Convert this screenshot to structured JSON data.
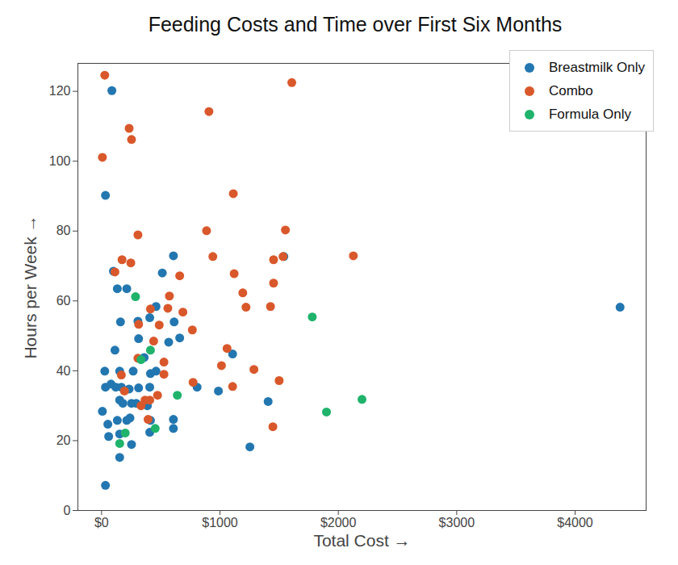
{
  "chart_data": {
    "type": "scatter",
    "title": "Feeding Costs and Time over First Six Months",
    "x_label": "Total Cost",
    "y_label": "Hours per Week",
    "xlim": [
      -200,
      4600
    ],
    "xticks": [
      {
        "value": 0,
        "label": "$0"
      },
      {
        "value": 1000,
        "label": "$1000"
      },
      {
        "value": 2000,
        "label": "$2000"
      },
      {
        "value": 3000,
        "label": "$3000"
      },
      {
        "value": 4000,
        "label": "$4000"
      }
    ],
    "ylim": [
      0,
      128
    ],
    "yticks": [
      0,
      20,
      40,
      60,
      80,
      100,
      120
    ],
    "grid": false,
    "legend": "upper right",
    "series": [
      {
        "name": "Breastmilk Only",
        "color": "#2377b0",
        "marker": "circle",
        "values": [
          [
            87,
            120.2
          ],
          [
            33,
            90.2
          ],
          [
            100,
            68.5
          ],
          [
            133,
            63.5
          ],
          [
            607,
            72.9
          ],
          [
            1540,
            72.7
          ],
          [
            513,
            68
          ],
          [
            213,
            63.5
          ],
          [
            160,
            54
          ],
          [
            307,
            54.2
          ],
          [
            407,
            55.2
          ],
          [
            460,
            58.4
          ],
          [
            613,
            54
          ],
          [
            313,
            49.2
          ],
          [
            567,
            48.2
          ],
          [
            660,
            49.4
          ],
          [
            113,
            45.9
          ],
          [
            1107,
            44.8
          ],
          [
            360,
            43.8
          ],
          [
            27,
            39.9
          ],
          [
            153,
            39.9
          ],
          [
            267,
            39.9
          ],
          [
            413,
            39.2
          ],
          [
            460,
            39.9
          ],
          [
            33,
            35.3
          ],
          [
            80,
            36.2
          ],
          [
            120,
            35.3
          ],
          [
            167,
            35.3
          ],
          [
            233,
            34.8
          ],
          [
            313,
            35.1
          ],
          [
            407,
            35.3
          ],
          [
            807,
            35.3
          ],
          [
            987,
            34.2
          ],
          [
            153,
            31.6
          ],
          [
            180,
            30.7
          ],
          [
            253,
            30.7
          ],
          [
            293,
            30.7
          ],
          [
            387,
            30
          ],
          [
            1407,
            31.2
          ],
          [
            7,
            28.4
          ],
          [
            240,
            26.5
          ],
          [
            133,
            25.8
          ],
          [
            213,
            25.8
          ],
          [
            413,
            25.8
          ],
          [
            607,
            26.1
          ],
          [
            53,
            24.7
          ],
          [
            607,
            23.5
          ],
          [
            407,
            22.4
          ],
          [
            153,
            21.9
          ],
          [
            60,
            21.2
          ],
          [
            253,
            18.9
          ],
          [
            1253,
            18.2
          ],
          [
            153,
            15.2
          ],
          [
            33,
            7.2
          ],
          [
            4380,
            58.2
          ]
        ]
      },
      {
        "name": "Combo",
        "color": "#d9582b",
        "marker": "circle",
        "values": [
          [
            27,
            124.6
          ],
          [
            1607,
            122.5
          ],
          [
            907,
            114.2
          ],
          [
            233,
            109.4
          ],
          [
            253,
            106.2
          ],
          [
            7,
            101.1
          ],
          [
            1113,
            90.7
          ],
          [
            887,
            80.1
          ],
          [
            1553,
            80.3
          ],
          [
            307,
            78.9
          ],
          [
            2127,
            72.9
          ],
          [
            940,
            72.7
          ],
          [
            1533,
            72.7
          ],
          [
            1453,
            71.8
          ],
          [
            173,
            71.8
          ],
          [
            247,
            70.9
          ],
          [
            113,
            68.3
          ],
          [
            1120,
            67.8
          ],
          [
            660,
            67.2
          ],
          [
            1453,
            65.1
          ],
          [
            1193,
            62.3
          ],
          [
            573,
            61.4
          ],
          [
            560,
            57.9
          ],
          [
            1220,
            58.2
          ],
          [
            1427,
            58.4
          ],
          [
            687,
            56.8
          ],
          [
            413,
            57.7
          ],
          [
            767,
            51.7
          ],
          [
            313,
            53.3
          ],
          [
            487,
            53.1
          ],
          [
            440,
            48.5
          ],
          [
            1060,
            46.4
          ],
          [
            307,
            43.6
          ],
          [
            527,
            42.5
          ],
          [
            1013,
            41.5
          ],
          [
            1287,
            40.4
          ],
          [
            167,
            38.8
          ],
          [
            527,
            39
          ],
          [
            773,
            36.7
          ],
          [
            1500,
            37.2
          ],
          [
            193,
            34.2
          ],
          [
            1107,
            35.5
          ],
          [
            367,
            31.6
          ],
          [
            407,
            31.6
          ],
          [
            473,
            33
          ],
          [
            333,
            30
          ],
          [
            393,
            26.1
          ],
          [
            1447,
            24
          ]
        ]
      },
      {
        "name": "Formula Only",
        "color": "#1fb36b",
        "marker": "circle",
        "values": [
          [
            287,
            61.2
          ],
          [
            1780,
            55.4
          ],
          [
            413,
            45.9
          ],
          [
            333,
            43.2
          ],
          [
            640,
            33
          ],
          [
            1900,
            28.2
          ],
          [
            2200,
            31.8
          ],
          [
            453,
            23.5
          ],
          [
            153,
            19.2
          ],
          [
            200,
            22.2
          ]
        ]
      }
    ]
  }
}
